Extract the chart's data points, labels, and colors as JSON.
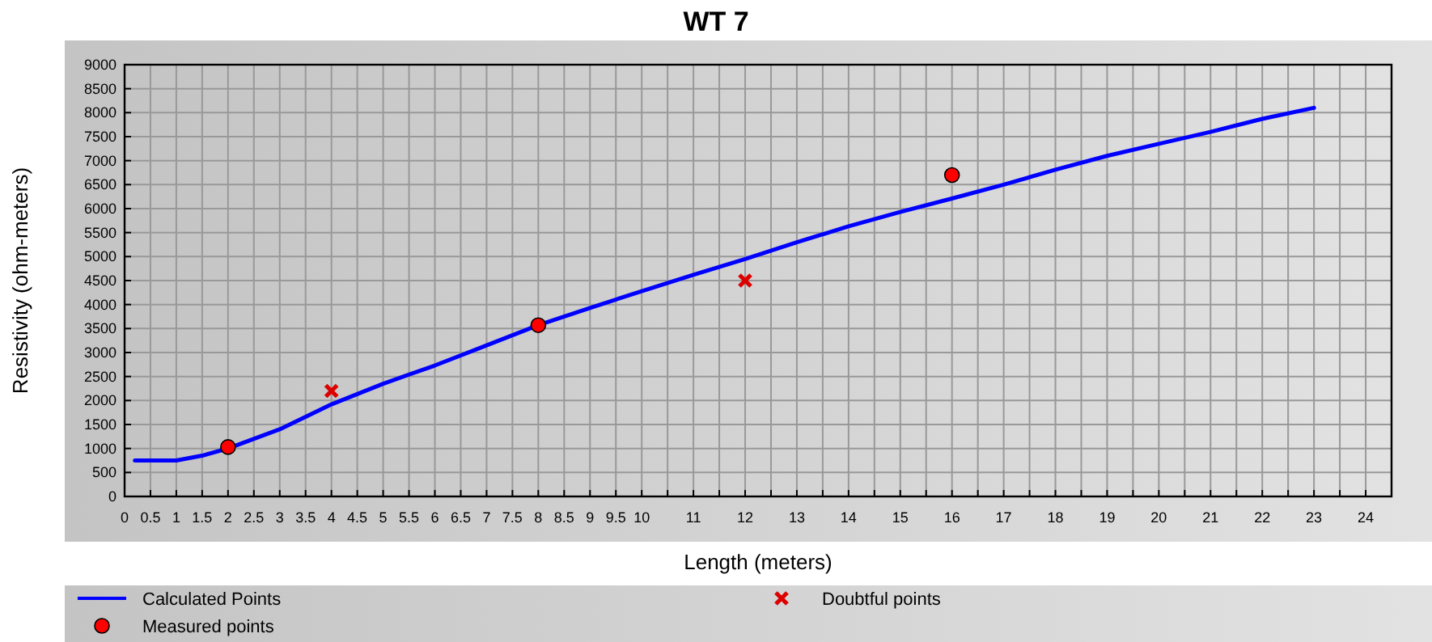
{
  "chart_data": {
    "type": "line",
    "title": "WT 7",
    "xlabel": "Length (meters)",
    "ylabel": "Resistivity (ohm-meters)",
    "xlim": [
      0,
      24.5
    ],
    "ylim": [
      0,
      9000
    ],
    "xticks": [
      0,
      0.5,
      1,
      1.5,
      2,
      2.5,
      3,
      3.5,
      4,
      4.5,
      5,
      5.5,
      6,
      6.5,
      7,
      7.5,
      8,
      8.5,
      9,
      9.5,
      10,
      {
        "value": 10.5,
        "label": null
      },
      11,
      {
        "value": 11.5,
        "label": null
      },
      12,
      {
        "value": 12.5,
        "label": null
      },
      13,
      {
        "value": 13.5,
        "label": null
      },
      14,
      {
        "value": 14.5,
        "label": null
      },
      15,
      {
        "value": 15.5,
        "label": null
      },
      16,
      {
        "value": 16.5,
        "label": null
      },
      17,
      {
        "value": 17.5,
        "label": null
      },
      18,
      {
        "value": 18.5,
        "label": null
      },
      19,
      {
        "value": 19.5,
        "label": null
      },
      20,
      {
        "value": 20.5,
        "label": null
      },
      21,
      {
        "value": 21.5,
        "label": null
      },
      22,
      {
        "value": 22.5,
        "label": null
      },
      23,
      {
        "value": 23.5,
        "label": null
      },
      24
    ],
    "yticks": [
      0,
      500,
      1000,
      1500,
      2000,
      2500,
      3000,
      3500,
      4000,
      4500,
      5000,
      5500,
      6000,
      6500,
      7000,
      7500,
      8000,
      8500,
      9000
    ],
    "grid": true,
    "legend": "bottom",
    "line_style": "solid",
    "series": [
      {
        "name": "Calculated Points",
        "color": "#0000ff",
        "marker": "none",
        "x": [
          0.2,
          1,
          1.5,
          2,
          3,
          4,
          5,
          6,
          7,
          8,
          9,
          10,
          11,
          12,
          13,
          14,
          15,
          16,
          17,
          18,
          19,
          20,
          21,
          22,
          23
        ],
        "values": [
          750,
          750,
          850,
          1000,
          1400,
          1920,
          2350,
          2730,
          3150,
          3570,
          3930,
          4280,
          4620,
          4950,
          5300,
          5630,
          5930,
          6210,
          6500,
          6810,
          7100,
          7350,
          7600,
          7870,
          8100
        ]
      },
      {
        "name": "Measured points",
        "type": "scatter",
        "color": "#ff0000",
        "marker": "circle",
        "x": [
          2,
          8,
          16
        ],
        "values": [
          1030,
          3570,
          6700
        ]
      },
      {
        "name": "Doubtful points",
        "type": "scatter",
        "color": "#dd0000",
        "marker": "cross",
        "x": [
          4,
          12
        ],
        "values": [
          2200,
          4500
        ]
      }
    ]
  }
}
